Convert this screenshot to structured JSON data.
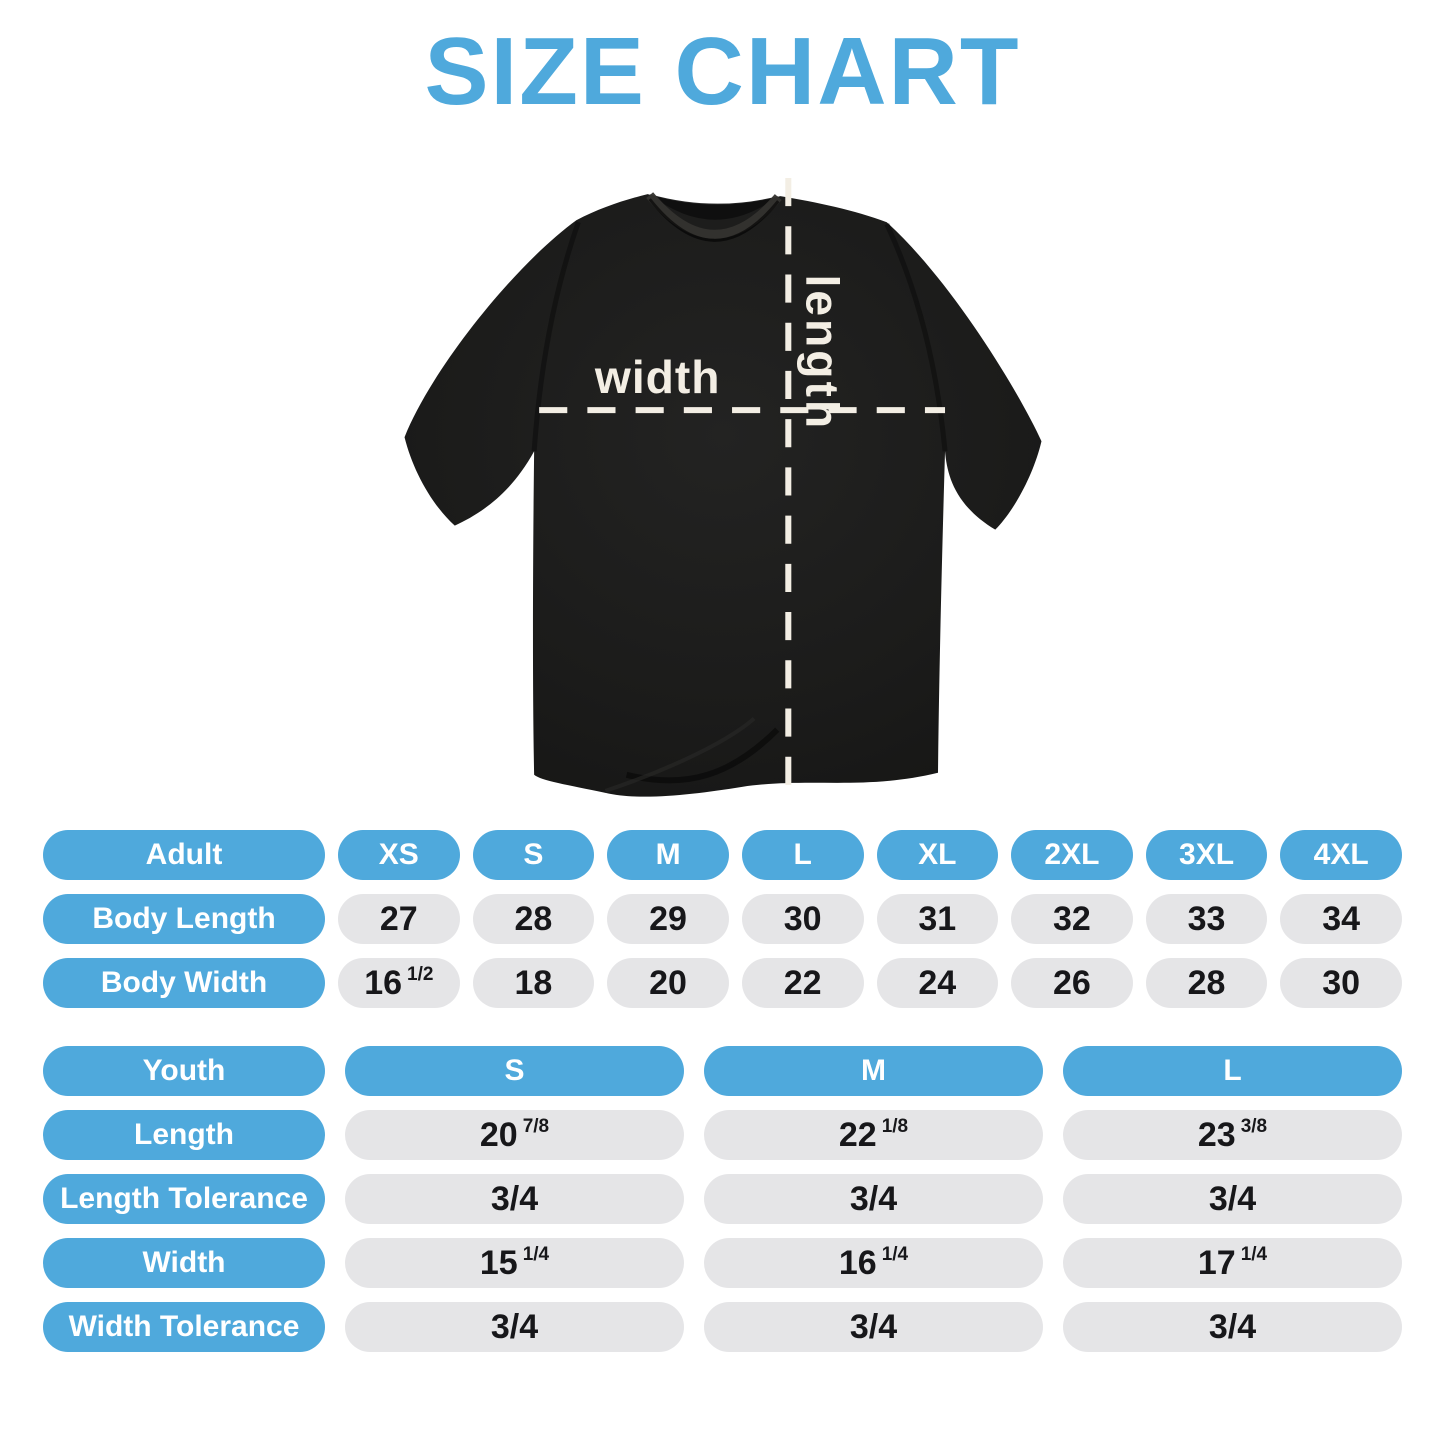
{
  "title": "SIZE CHART",
  "shirt_diagram": {
    "width_label": "width",
    "length_label": "length"
  },
  "colors": {
    "accent_blue": "#4FA9DC",
    "cell_gray": "#E5E5E7",
    "text_dark": "#17171A",
    "cream": "#F3EEE4",
    "shirt_black": "#1A1A19",
    "background": "#FFFFFF"
  },
  "adult_table": {
    "header_label": "Adult",
    "columns": [
      "XS",
      "S",
      "M",
      "L",
      "XL",
      "2XL",
      "3XL",
      "4XL"
    ],
    "rows": [
      {
        "label": "Body Length",
        "values": [
          "27",
          "28",
          "29",
          "30",
          "31",
          "32",
          "33",
          "34"
        ]
      },
      {
        "label": "Body Width",
        "values": [
          "16 1/2",
          "18",
          "20",
          "22",
          "24",
          "26",
          "28",
          "30"
        ]
      }
    ]
  },
  "youth_table": {
    "header_label": "Youth",
    "columns": [
      "S",
      "M",
      "L"
    ],
    "rows": [
      {
        "label": "Length",
        "values": [
          "20 7/8",
          "22 1/8",
          "23 3/8"
        ]
      },
      {
        "label": "Length Tolerance",
        "values": [
          "3/4",
          "3/4",
          "3/4"
        ]
      },
      {
        "label": "Width",
        "values": [
          "15 1/4",
          "16 1/4",
          "17 1/4"
        ]
      },
      {
        "label": "Width Tolerance",
        "values": [
          "3/4",
          "3/4",
          "3/4"
        ]
      }
    ]
  }
}
